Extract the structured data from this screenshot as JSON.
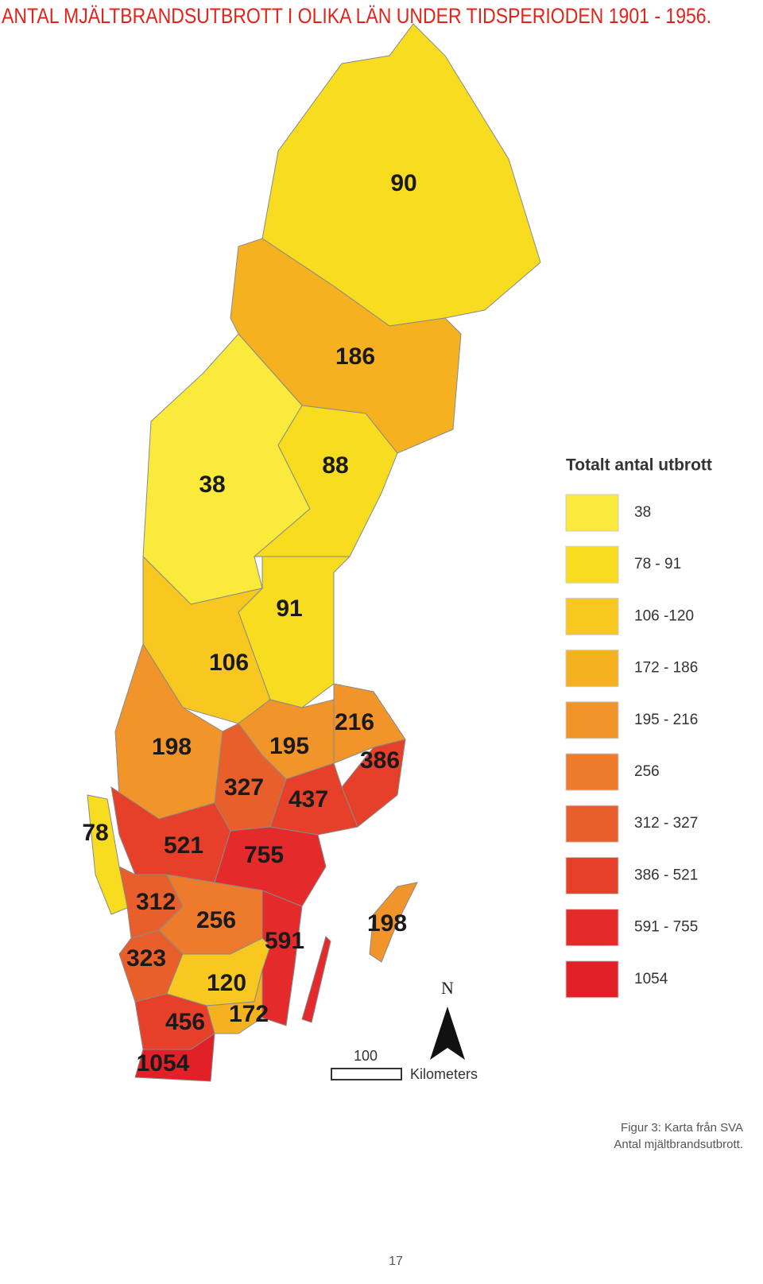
{
  "header": {
    "title": "ANTAL MJÄLTBRANDSUTBROTT I OLIKA LÄN UNDER TIDSPERIODEN 1901 - 1956."
  },
  "map": {
    "regions": [
      {
        "value": 90,
        "color": "#f8dc20"
      },
      {
        "value": 186,
        "color": "#f6b120"
      },
      {
        "value": 38,
        "color": "#f9ea3c"
      },
      {
        "value": 88,
        "color": "#f8dc20"
      },
      {
        "value": 91,
        "color": "#f8dc20"
      },
      {
        "value": 106,
        "color": "#f8c720"
      },
      {
        "value": 198,
        "color": "#f1942a"
      },
      {
        "value": 195,
        "color": "#f1942a"
      },
      {
        "value": 216,
        "color": "#f1942a"
      },
      {
        "value": 386,
        "color": "#e63f2a"
      },
      {
        "value": 327,
        "color": "#e95f2c"
      },
      {
        "value": 437,
        "color": "#e63f2a"
      },
      {
        "value": 78,
        "color": "#f8dc20"
      },
      {
        "value": 521,
        "color": "#e63f2a"
      },
      {
        "value": 755,
        "color": "#e42a2a"
      },
      {
        "value": 312,
        "color": "#e95f2c"
      },
      {
        "value": 256,
        "color": "#ed7b2b"
      },
      {
        "value": 591,
        "color": "#e42a2a"
      },
      {
        "value": 323,
        "color": "#e95f2c"
      },
      {
        "value": 120,
        "color": "#f8c720"
      },
      {
        "value": 172,
        "color": "#f6b120"
      },
      {
        "value": 456,
        "color": "#e63f2a"
      },
      {
        "value": 1054,
        "color": "#e22028"
      },
      {
        "value": 198,
        "color": "#f1942a"
      }
    ]
  },
  "legend": {
    "title": "Totalt antal utbrott",
    "entries": [
      {
        "label": "38",
        "color": "#f9ea3c"
      },
      {
        "label": "78 - 91",
        "color": "#f8dc20"
      },
      {
        "label": "106 -120",
        "color": "#f8c720"
      },
      {
        "label": "172 - 186",
        "color": "#f6b120"
      },
      {
        "label": "195 - 216",
        "color": "#f1942a"
      },
      {
        "label": "256",
        "color": "#ed7b2b"
      },
      {
        "label": "312 - 327",
        "color": "#e95f2c"
      },
      {
        "label": "386 - 521",
        "color": "#e63f2a"
      },
      {
        "label": "591 - 755",
        "color": "#e42a2a"
      },
      {
        "label": "1054",
        "color": "#e22028"
      }
    ]
  },
  "scale_bar": {
    "distance": "100",
    "unit": "Kilometers"
  },
  "north_label": "N",
  "caption": {
    "lines": [
      "Figur 3: Karta från SVA",
      "Antal mjältbrandsutbrott."
    ]
  },
  "page_number": "17"
}
